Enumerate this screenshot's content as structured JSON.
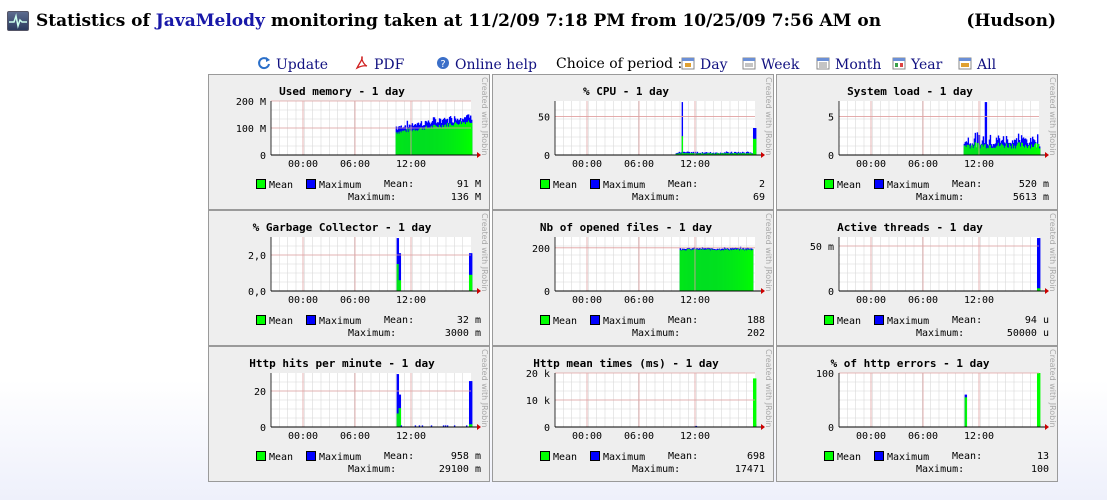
{
  "header": {
    "prefix": "Statistics of",
    "brand": "JavaMelody",
    "middle": "monitoring taken at 11/2/09 7:18 PM from 10/25/09 7:56 AM on",
    "instance": "(Hudson)"
  },
  "toolbar": {
    "update": "Update",
    "pdf": "PDF",
    "help": "Online help",
    "period_label": "Choice of period :",
    "day": "Day",
    "week": "Week",
    "month": "Month",
    "year": "Year",
    "all": "All"
  },
  "colors": {
    "mean": "#00ff00",
    "max": "#0000ff",
    "grid_major": "#e0a0a0",
    "grid_minor": "#d8d8d8"
  },
  "legend": {
    "mean": "Mean",
    "maximum": "Maximum",
    "mean_label": "Mean:",
    "max_label": "Maximum:"
  },
  "watermark": "Created with JRobin",
  "x_ticks": [
    "00:00",
    "06:00",
    "12:00"
  ],
  "charts": [
    {
      "title": "Used memory - 1 day",
      "yticks": [
        "200 M",
        "100 M",
        "0"
      ],
      "ymax": 200,
      "mean": "91 M",
      "max": "136 M",
      "shape": "memory"
    },
    {
      "title": "% CPU - 1 day",
      "yticks": [
        "50",
        "0"
      ],
      "ymax": 70,
      "mean": "2",
      "max": "69",
      "shape": "cpu"
    },
    {
      "title": "System load - 1 day",
      "yticks": [
        "5",
        "0"
      ],
      "ymax": 7,
      "mean": "520 m",
      "max": "5613 m",
      "shape": "load"
    },
    {
      "title": "% Garbage Collector - 1 day",
      "yticks": [
        "2,0",
        "0,0"
      ],
      "ymax": 3,
      "mean": "32 m",
      "max": "3000 m",
      "shape": "gc"
    },
    {
      "title": "Nb of opened files - 1 day",
      "yticks": [
        "200",
        "0"
      ],
      "ymax": 250,
      "mean": "188",
      "max": "202",
      "shape": "files"
    },
    {
      "title": "Active threads - 1 day",
      "yticks": [
        "50 m",
        "0"
      ],
      "ymax": 60,
      "mean": "94 u",
      "max": "50000 u",
      "shape": "threads"
    },
    {
      "title": "Http hits per minute - 1 day",
      "yticks": [
        "20",
        "0"
      ],
      "ymax": 30,
      "mean": "958 m",
      "max": "29100 m",
      "shape": "hits"
    },
    {
      "title": "Http mean times (ms) - 1 day",
      "yticks": [
        "20 k",
        "10 k",
        "0"
      ],
      "ymax": 20000,
      "mean": "698",
      "max": "17471",
      "shape": "times"
    },
    {
      "title": "% of http errors - 1 day",
      "yticks": [
        "100",
        "0"
      ],
      "ymax": 100,
      "mean": "13",
      "max": "100",
      "shape": "errors"
    }
  ]
}
